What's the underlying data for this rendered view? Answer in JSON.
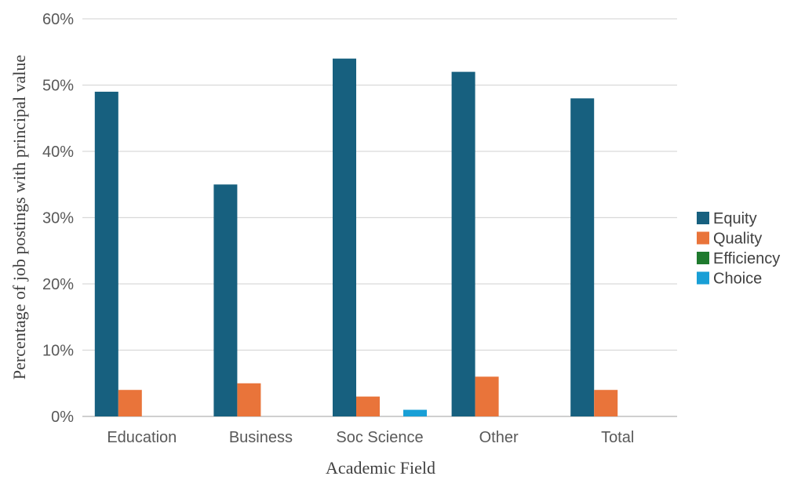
{
  "chart_data": {
    "type": "bar",
    "title": "",
    "xlabel": "Academic Field",
    "ylabel": "Percentage of job postings with principal value",
    "categories": [
      "Education",
      "Business",
      "Soc Science",
      "Other",
      "Total"
    ],
    "series": [
      {
        "name": "Equity",
        "color": "#17607f",
        "values": [
          49,
          35,
          54,
          52,
          48
        ]
      },
      {
        "name": "Quality",
        "color": "#e9743a",
        "values": [
          4,
          5,
          3,
          6,
          4
        ]
      },
      {
        "name": "Efficiency",
        "color": "#1f7a2e",
        "values": [
          0,
          0,
          0,
          0,
          0
        ]
      },
      {
        "name": "Choice",
        "color": "#199fd6",
        "values": [
          0,
          0,
          1,
          0,
          0
        ]
      }
    ],
    "ylim": [
      0,
      60
    ],
    "yticks": [
      "0%",
      "10%",
      "20%",
      "30%",
      "40%",
      "50%",
      "60%"
    ],
    "grid": true,
    "legend_position": "right"
  }
}
